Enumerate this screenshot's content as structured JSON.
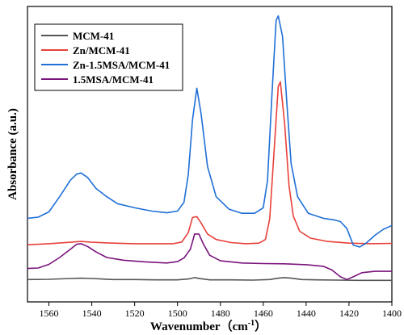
{
  "chart_data": {
    "type": "line",
    "xlabel": "Wavenumber（cm",
    "xlabel_sup": "-1",
    "xlabel_close": "）",
    "ylabel": "Absorbance (a.u.)",
    "xlim": [
      1570,
      1400
    ],
    "ylim": [
      0,
      1
    ],
    "x_ticks": [
      1560,
      1540,
      1520,
      1500,
      1480,
      1460,
      1440,
      1420,
      1400
    ],
    "x_tick_labels": [
      "1560",
      "1540",
      "1520",
      "1500",
      "1480",
      "1460",
      "1440",
      "1420",
      "1400"
    ],
    "y_ticks_shown": false,
    "legend_position": "top-left",
    "series": [
      {
        "name": "MCM-41",
        "color": "#555555",
        "points": [
          [
            1570,
            0.04
          ],
          [
            1560,
            0.041
          ],
          [
            1550,
            0.044
          ],
          [
            1545,
            0.045
          ],
          [
            1540,
            0.044
          ],
          [
            1530,
            0.04
          ],
          [
            1520,
            0.04
          ],
          [
            1510,
            0.039
          ],
          [
            1500,
            0.039
          ],
          [
            1495,
            0.042
          ],
          [
            1492,
            0.047
          ],
          [
            1489,
            0.043
          ],
          [
            1485,
            0.039
          ],
          [
            1475,
            0.039
          ],
          [
            1465,
            0.038
          ],
          [
            1457,
            0.04
          ],
          [
            1453,
            0.045
          ],
          [
            1450,
            0.047
          ],
          [
            1447,
            0.045
          ],
          [
            1442,
            0.04
          ],
          [
            1435,
            0.039
          ],
          [
            1425,
            0.038
          ],
          [
            1415,
            0.037
          ],
          [
            1405,
            0.037
          ],
          [
            1400,
            0.037
          ]
        ]
      },
      {
        "name": "Zn/MCM-41",
        "color": "#e8403a",
        "points": [
          [
            1570,
            0.166
          ],
          [
            1560,
            0.17
          ],
          [
            1550,
            0.175
          ],
          [
            1545,
            0.178
          ],
          [
            1540,
            0.175
          ],
          [
            1530,
            0.172
          ],
          [
            1520,
            0.17
          ],
          [
            1510,
            0.17
          ],
          [
            1502,
            0.17
          ],
          [
            1498,
            0.176
          ],
          [
            1495,
            0.21
          ],
          [
            1493,
            0.265
          ],
          [
            1491,
            0.268
          ],
          [
            1489,
            0.245
          ],
          [
            1486,
            0.205
          ],
          [
            1482,
            0.185
          ],
          [
            1475,
            0.174
          ],
          [
            1468,
            0.17
          ],
          [
            1462,
            0.172
          ],
          [
            1459,
            0.185
          ],
          [
            1457,
            0.26
          ],
          [
            1455,
            0.5
          ],
          [
            1453,
            0.74
          ],
          [
            1452,
            0.756
          ],
          [
            1450,
            0.6
          ],
          [
            1448,
            0.38
          ],
          [
            1446,
            0.27
          ],
          [
            1443,
            0.215
          ],
          [
            1438,
            0.19
          ],
          [
            1430,
            0.178
          ],
          [
            1420,
            0.172
          ],
          [
            1410,
            0.17
          ],
          [
            1400,
            0.171
          ]
        ]
      },
      {
        "name": "Zn-1.5MSA/MCM-41",
        "color": "#1f6fd6",
        "points": [
          [
            1570,
            0.262
          ],
          [
            1565,
            0.266
          ],
          [
            1560,
            0.285
          ],
          [
            1555,
            0.34
          ],
          [
            1550,
            0.4
          ],
          [
            1547,
            0.422
          ],
          [
            1545,
            0.426
          ],
          [
            1542,
            0.41
          ],
          [
            1538,
            0.37
          ],
          [
            1533,
            0.34
          ],
          [
            1528,
            0.315
          ],
          [
            1520,
            0.3
          ],
          [
            1512,
            0.288
          ],
          [
            1505,
            0.282
          ],
          [
            1500,
            0.288
          ],
          [
            1497,
            0.32
          ],
          [
            1495,
            0.42
          ],
          [
            1493,
            0.62
          ],
          [
            1491,
            0.733
          ],
          [
            1489,
            0.64
          ],
          [
            1486,
            0.45
          ],
          [
            1482,
            0.34
          ],
          [
            1476,
            0.295
          ],
          [
            1470,
            0.28
          ],
          [
            1464,
            0.28
          ],
          [
            1460,
            0.3
          ],
          [
            1458,
            0.4
          ],
          [
            1456,
            0.7
          ],
          [
            1454,
            0.978
          ],
          [
            1453,
            0.995
          ],
          [
            1451,
            0.92
          ],
          [
            1449,
            0.68
          ],
          [
            1447,
            0.46
          ],
          [
            1444,
            0.34
          ],
          [
            1439,
            0.28
          ],
          [
            1432,
            0.262
          ],
          [
            1427,
            0.256
          ],
          [
            1424,
            0.25
          ],
          [
            1421,
            0.225
          ],
          [
            1418,
            0.165
          ],
          [
            1415,
            0.158
          ],
          [
            1412,
            0.172
          ],
          [
            1408,
            0.2
          ],
          [
            1404,
            0.222
          ],
          [
            1400,
            0.236
          ]
        ]
      },
      {
        "name": "1.5MSA/MCM-41",
        "color": "#7a137c",
        "points": [
          [
            1570,
            0.08
          ],
          [
            1565,
            0.082
          ],
          [
            1560,
            0.095
          ],
          [
            1555,
            0.12
          ],
          [
            1550,
            0.15
          ],
          [
            1547,
            0.168
          ],
          [
            1545,
            0.17
          ],
          [
            1542,
            0.16
          ],
          [
            1538,
            0.14
          ],
          [
            1533,
            0.12
          ],
          [
            1525,
            0.11
          ],
          [
            1515,
            0.104
          ],
          [
            1505,
            0.1
          ],
          [
            1500,
            0.105
          ],
          [
            1497,
            0.118
          ],
          [
            1494,
            0.15
          ],
          [
            1492,
            0.205
          ],
          [
            1490,
            0.205
          ],
          [
            1488,
            0.17
          ],
          [
            1485,
            0.128
          ],
          [
            1480,
            0.108
          ],
          [
            1470,
            0.1
          ],
          [
            1460,
            0.098
          ],
          [
            1450,
            0.097
          ],
          [
            1440,
            0.094
          ],
          [
            1432,
            0.088
          ],
          [
            1428,
            0.075
          ],
          [
            1424,
            0.05
          ],
          [
            1421,
            0.04
          ],
          [
            1418,
            0.05
          ],
          [
            1414,
            0.065
          ],
          [
            1408,
            0.07
          ],
          [
            1400,
            0.07
          ]
        ]
      }
    ]
  }
}
